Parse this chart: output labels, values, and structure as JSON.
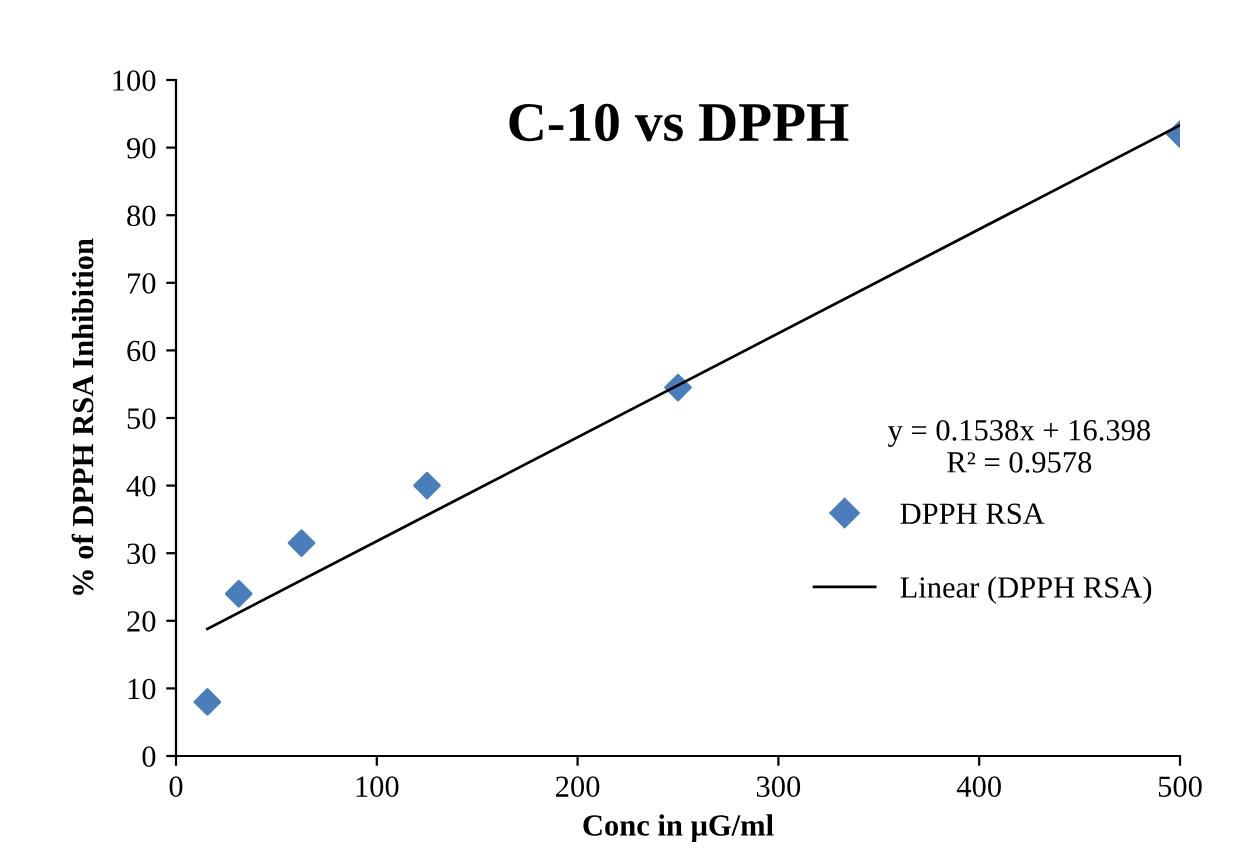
{
  "chart_data": {
    "type": "scatter",
    "title": "C-10 vs DPPH",
    "xlabel": "Conc in μG/ml",
    "ylabel": "% of DPPH RSA Inhibition",
    "x": [
      15.625,
      31.25,
      62.5,
      125,
      250,
      500
    ],
    "series": [
      {
        "name": "DPPH RSA",
        "color": "#4a7ebb",
        "marker": "diamond",
        "values": [
          8,
          24,
          31.5,
          40,
          54.5,
          92
        ]
      },
      {
        "name": "Linear (DPPH RSA)",
        "type": "line",
        "color": "#000000",
        "marker": "none",
        "x": [
          15.625,
          500
        ],
        "values": [
          18.8,
          93.3
        ]
      }
    ],
    "annotations": [
      "y = 0.1538x + 16.398\nR² = 0.9578"
    ],
    "xlim": [
      0,
      500
    ],
    "xticks": [
      0,
      100,
      200,
      300,
      400,
      500
    ],
    "ylim": [
      0,
      100
    ],
    "yticks": [
      0,
      10,
      20,
      30,
      40,
      50,
      60,
      70,
      80,
      90,
      100
    ],
    "grid": false,
    "legend": "right"
  }
}
